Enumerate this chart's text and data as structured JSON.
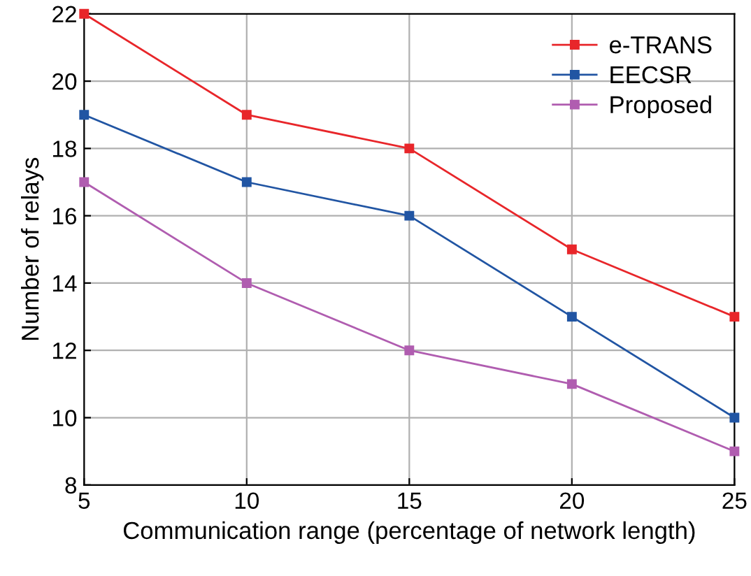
{
  "chart_data": {
    "type": "line",
    "xlabel": "Communication range (percentage of network length)",
    "ylabel": "Number of relays",
    "x": [
      5,
      10,
      15,
      20,
      25
    ],
    "series": [
      {
        "name": "e-TRANS",
        "color": "#e8262a",
        "values": [
          22,
          19,
          18,
          15,
          13
        ]
      },
      {
        "name": "EECSR",
        "color": "#2155a3",
        "values": [
          19,
          17,
          16,
          13,
          10
        ]
      },
      {
        "name": "Proposed",
        "color": "#b05db0",
        "values": [
          17,
          14,
          12,
          11,
          9
        ]
      }
    ],
    "xlim": [
      5,
      25
    ],
    "xticks": [
      5,
      10,
      15,
      20,
      25
    ],
    "ylim": [
      8,
      22
    ],
    "yticks": [
      8,
      10,
      12,
      14,
      16,
      18,
      20,
      22
    ],
    "grid": true,
    "legend": "top right",
    "marker": "square",
    "line_style": "solid"
  }
}
